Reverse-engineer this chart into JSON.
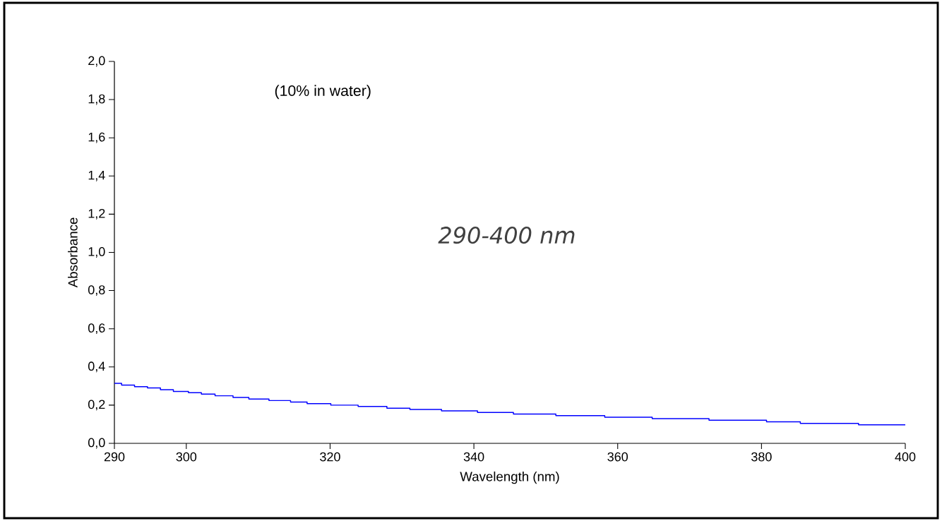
{
  "chart_data": {
    "type": "step",
    "x": [
      290,
      291,
      292.8,
      294.6,
      296.4,
      298.2,
      300.3,
      302.1,
      304,
      306.5,
      308.7,
      311.5,
      314.5,
      316.8,
      320.1,
      323.9,
      327.9,
      331.1,
      335.5,
      340.5,
      345.5,
      351.4,
      358.2,
      364.8,
      372.7,
      380.7,
      385.4,
      393.5,
      400
    ],
    "series": [
      {
        "color": "#0000ff",
        "values": [
          0.314,
          0.305,
          0.297,
          0.29,
          0.281,
          0.272,
          0.265,
          0.258,
          0.249,
          0.24,
          0.232,
          0.224,
          0.216,
          0.208,
          0.2,
          0.193,
          0.184,
          0.177,
          0.17,
          0.162,
          0.153,
          0.145,
          0.137,
          0.129,
          0.121,
          0.113,
          0.104,
          0.097,
          0.097
        ]
      }
    ],
    "xlabel": "Wavelength (nm)",
    "ylabel": "Absorbance",
    "annotations": [
      "(10% in water)",
      "*290-400 nm*"
    ],
    "xlim": [
      290,
      400
    ],
    "ylim": [
      0,
      2
    ],
    "xticks": [
      290,
      300,
      320,
      340,
      360,
      380,
      400
    ],
    "yticks": [
      {
        "value": 0,
        "label": "0,0"
      },
      {
        "value": 0.2,
        "label": "0,2"
      },
      {
        "value": 0.4,
        "label": "0,4"
      },
      {
        "value": 0.6,
        "label": "0,6"
      },
      {
        "value": 0.8,
        "label": "0,8"
      },
      {
        "value": 1.0,
        "label": "1,0"
      },
      {
        "value": 1.2,
        "label": "1,2"
      },
      {
        "value": 1.4,
        "label": "1,4"
      },
      {
        "value": 1.6,
        "label": "1,6"
      },
      {
        "value": 1.8,
        "label": "1,8"
      },
      {
        "value": 2.0,
        "label": "2,0"
      }
    ],
    "marker": "none",
    "line_style": "solid",
    "grid": false
  }
}
